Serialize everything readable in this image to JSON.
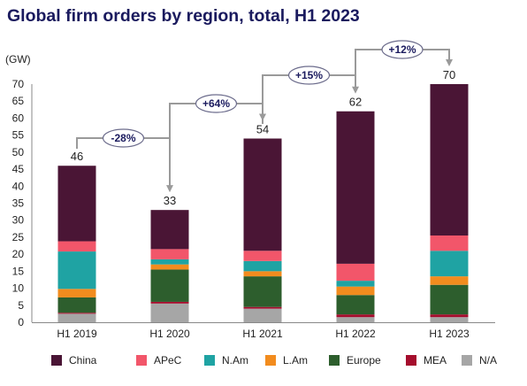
{
  "chart_data": {
    "type": "bar",
    "stacked": true,
    "title": "Global firm orders by region, total, H1 2023",
    "ylabel": "(GW)",
    "ylim": [
      0,
      70
    ],
    "yticks": [
      0,
      5,
      10,
      15,
      20,
      25,
      30,
      35,
      40,
      45,
      50,
      55,
      60,
      65,
      70
    ],
    "categories": [
      "H1 2019",
      "H1 2020",
      "H1 2021",
      "H1 2022",
      "H1 2023"
    ],
    "totals": [
      46,
      33,
      54,
      62,
      70
    ],
    "changes": [
      "-28%",
      "+64%",
      "+15%",
      "+12%"
    ],
    "legend_position": "bottom",
    "series": [
      {
        "name": "N/A",
        "color": "#a6a6a6",
        "values": [
          2.5,
          5.5,
          4.0,
          1.5,
          1.5
        ]
      },
      {
        "name": "MEA",
        "color": "#a50d2d",
        "values": [
          0.3,
          0.5,
          0.5,
          0.8,
          0.8
        ]
      },
      {
        "name": "Europe",
        "color": "#2d5e2d",
        "values": [
          4.5,
          9.5,
          9.0,
          5.7,
          8.7
        ]
      },
      {
        "name": "L.Am",
        "color": "#f28c1e",
        "values": [
          2.5,
          1.5,
          1.5,
          2.5,
          2.5
        ]
      },
      {
        "name": "N.Am",
        "color": "#1fa3a3",
        "values": [
          11.0,
          1.5,
          3.0,
          1.7,
          7.5
        ]
      },
      {
        "name": "APeC",
        "color": "#f2566a",
        "values": [
          3.0,
          3.0,
          3.0,
          5.0,
          4.5
        ]
      },
      {
        "name": "China",
        "color": "#4a1535",
        "values": [
          22.2,
          11.5,
          33.0,
          44.8,
          44.5
        ]
      }
    ],
    "legend_order": [
      "China",
      "APeC",
      "N.Am",
      "L.Am",
      "Europe",
      "MEA",
      "N/A"
    ]
  }
}
